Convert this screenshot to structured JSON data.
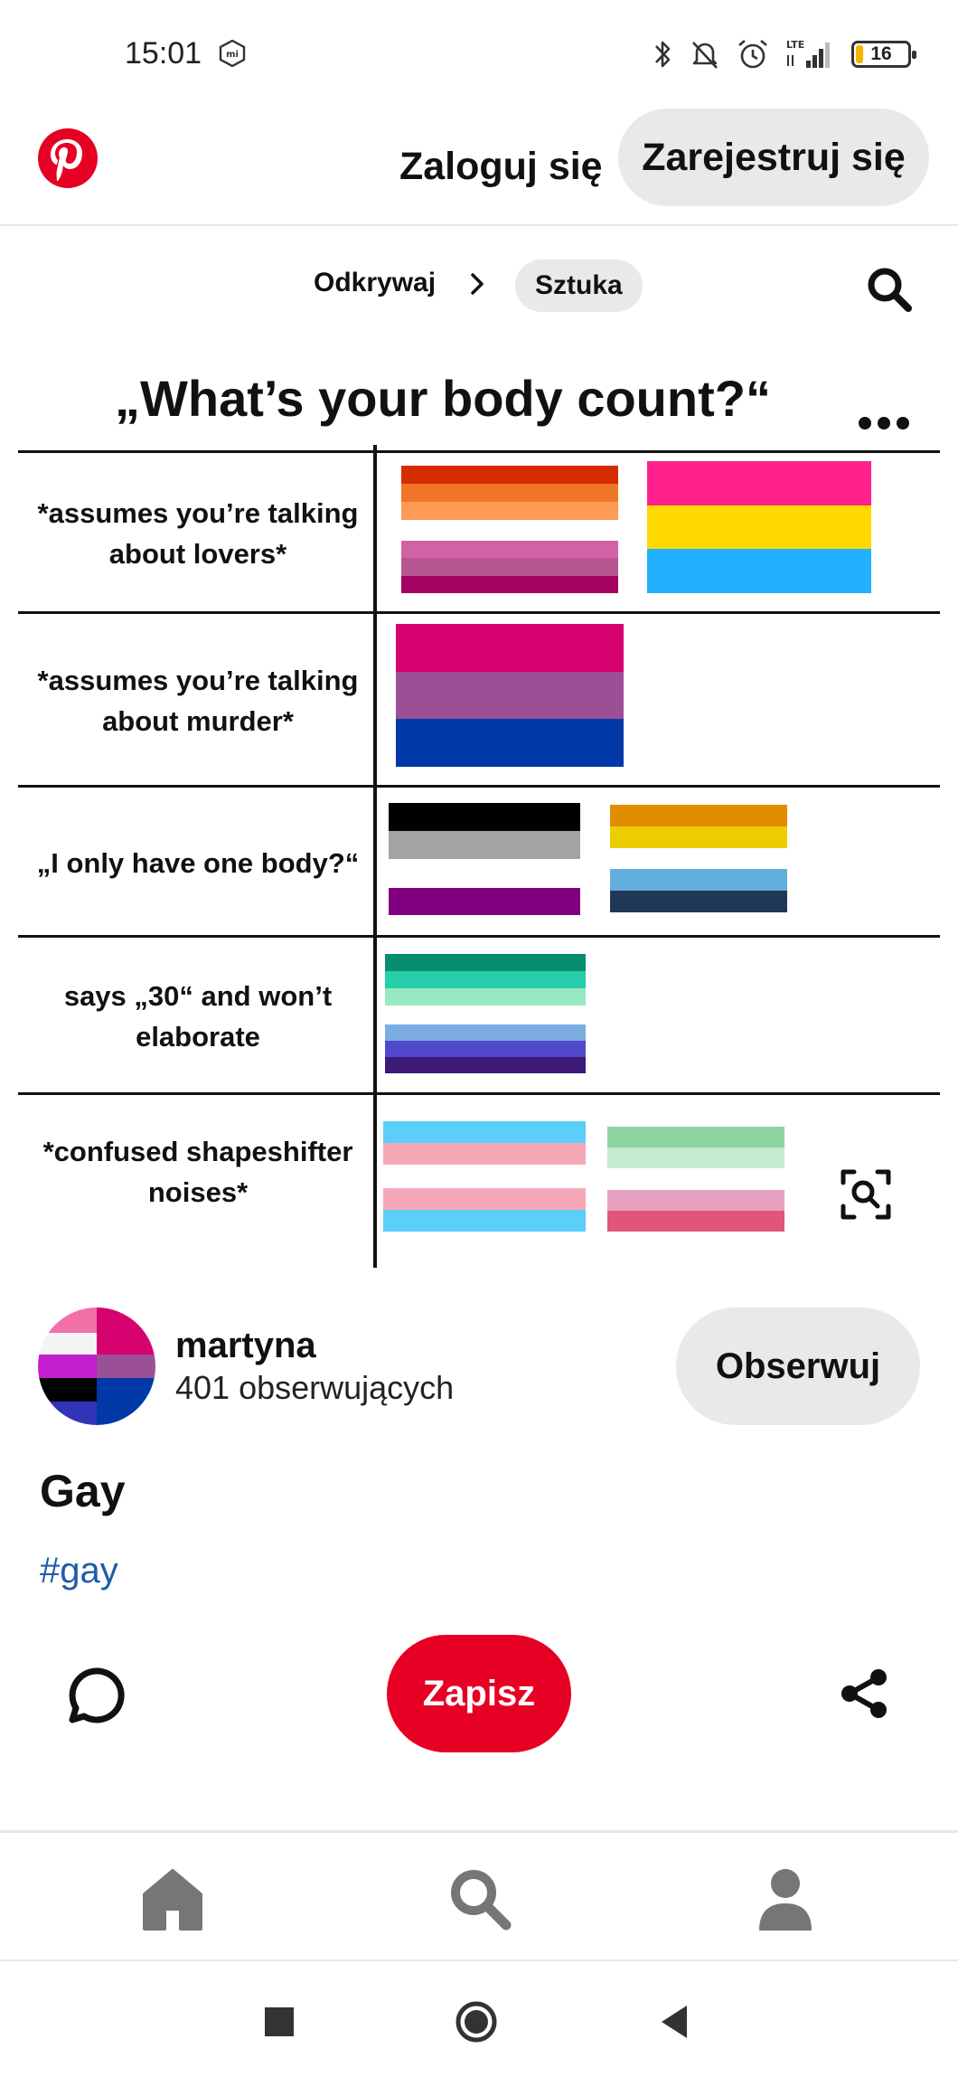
{
  "status_bar": {
    "time": "15:01",
    "network": "LTE",
    "battery": "16",
    "icons": [
      "mi-icon",
      "bluetooth-icon",
      "muted-bell-icon",
      "alarm-icon",
      "signal-icon",
      "battery-icon"
    ]
  },
  "header": {
    "login_label": "Zaloguj się",
    "register_label": "Zarejestruj się",
    "brand_color": "#e60023"
  },
  "breadcrumb": {
    "items": [
      "Odkrywaj",
      "Sztuka"
    ]
  },
  "pin_image": {
    "title": "„What’s your body count?“",
    "rows": [
      {
        "label": "*assumes you’re talking about lovers*"
      },
      {
        "label": "*assumes you’re talking about murder*"
      },
      {
        "label": "„I only have one body?“"
      },
      {
        "label": "says „30“ and won’t elaborate"
      },
      {
        "label": "*confused shapeshifter noises*"
      }
    ],
    "flag_colors": {
      "lesbian_top": [
        "#d52d00",
        "#ef7627",
        "#ff9a56"
      ],
      "lesbian_bottom": [
        "#d162a4",
        "#b55690",
        "#a30262"
      ],
      "pan": [
        "#ff218c",
        "#ffd800",
        "#21b1ff"
      ],
      "bi": [
        "#d60270",
        "#9b4f96",
        "#0038a8"
      ],
      "ace_top": [
        "#000000",
        "#a3a3a3"
      ],
      "ace_bottom": [
        "#800080"
      ],
      "aroace_top": [
        "#e28c00",
        "#eccd00"
      ],
      "aroace_bottom": [
        "#62aedc",
        "#203856"
      ],
      "gay_top": [
        "#078d70",
        "#26ceaa",
        "#98e8c1",
        "#ffffff"
      ],
      "gay_bottom": [
        "#7bade2",
        "#5049cc",
        "#3d1a78"
      ],
      "trans_top": [
        "#5bcefa",
        "#f5a9b8"
      ],
      "trans_bottom": [
        "#f5a9b8",
        "#5bcefa"
      ],
      "misc_top": [
        "#8fd3a3",
        "#c3ebcd"
      ],
      "misc_bottom": [
        "#e8a0c0",
        "#e0567a"
      ]
    }
  },
  "profile": {
    "name": "martyna",
    "followers": "401 obserwujących",
    "follow_label": "Obserwuj"
  },
  "pin": {
    "description": "Gay",
    "hashtag": "#gay",
    "save_label": "Zapisz"
  }
}
